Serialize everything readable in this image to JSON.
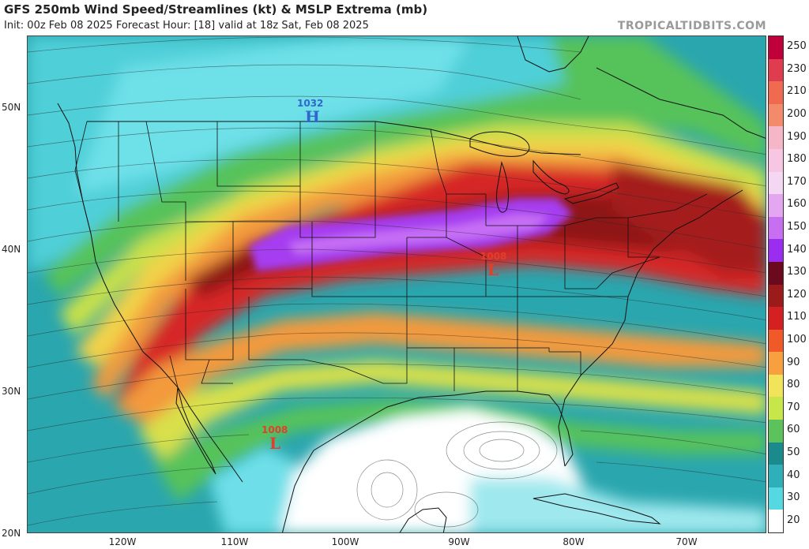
{
  "header": {
    "title": "GFS 250mb Wind Speed/Streamlines (kt) & MSLP Extrema (mb)",
    "subtitle": "Init: 00z Feb 08 2025   Forecast Hour: [18]   valid at 18z Sat, Feb 08 2025",
    "watermark": "TROPICALTIDBITS.COM"
  },
  "axes": {
    "lat_labels": [
      "50N",
      "40N",
      "30N",
      "20N"
    ],
    "lon_labels": [
      "120W",
      "110W",
      "100W",
      "90W",
      "80W",
      "70W"
    ]
  },
  "colorbar": {
    "labels": [
      "250",
      "230",
      "210",
      "200",
      "190",
      "180",
      "170",
      "160",
      "150",
      "140",
      "130",
      "120",
      "110",
      "100",
      "90",
      "80",
      "70",
      "60",
      "50",
      "40",
      "30",
      "20"
    ],
    "colors": [
      "#c0003a",
      "#e03c50",
      "#ef6a4e",
      "#f38a6a",
      "#f5b6c8",
      "#f7c6e3",
      "#f3d7f3",
      "#e4a6f0",
      "#c86ef0",
      "#9b2df0",
      "#6b0a1e",
      "#9a1b1a",
      "#d42020",
      "#f05a28",
      "#f8a040",
      "#f2e45a",
      "#c6e64a",
      "#5cc25c",
      "#1a8a8c",
      "#2fb0b8",
      "#56d8e0",
      "#ffffff"
    ]
  },
  "extrema": [
    {
      "value": "1032",
      "symbol": "H",
      "color": "#3366cc"
    },
    {
      "value": "1008",
      "symbol": "L",
      "color": "#e0402a"
    },
    {
      "value": "1008",
      "symbol": "L",
      "color": "#e0402a"
    }
  ]
}
